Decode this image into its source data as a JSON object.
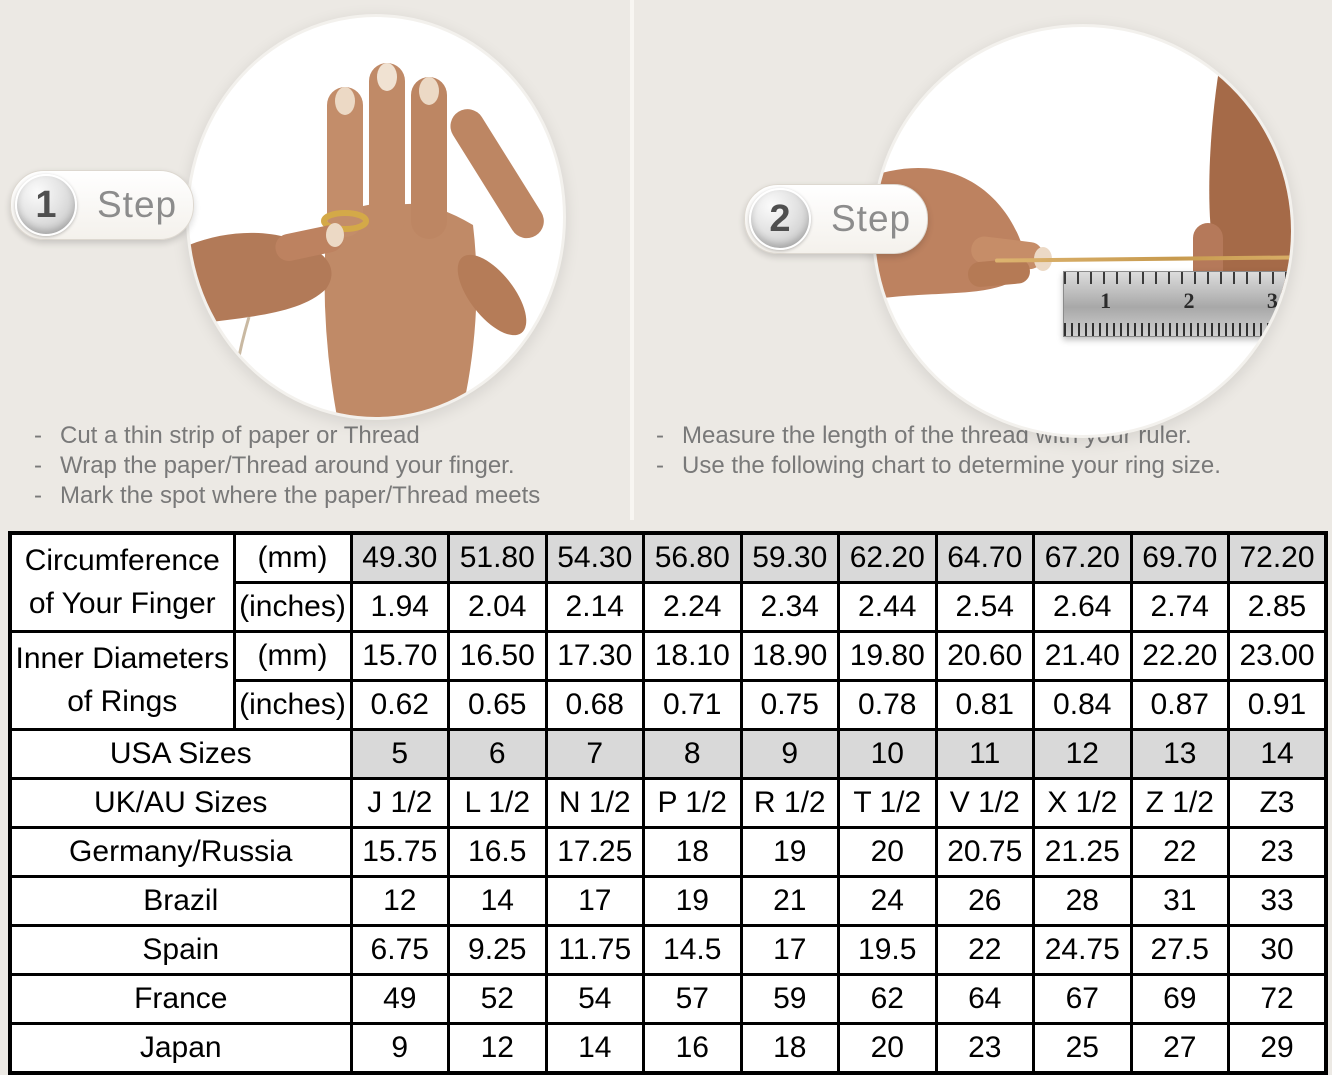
{
  "ui": {
    "dash": "-"
  },
  "colors": {
    "page_background": "#ece9e4",
    "table_shaded_cell": "#d9d9d9",
    "table_border": "#000000",
    "thread_gold": "#c79a4e"
  },
  "steps": [
    {
      "number": "1",
      "label": "Step",
      "bullets": [
        "Cut a thin strip of paper or Thread",
        "Wrap the paper/Thread around your finger.",
        "Mark the spot where the paper/Thread meets"
      ]
    },
    {
      "number": "2",
      "label": "Step",
      "bullets": [
        "Measure the length of the thread with your ruler.",
        "Use the following chart to determine your ring size."
      ]
    }
  ],
  "ruler": {
    "numbers": [
      "1",
      "2",
      "3"
    ]
  },
  "size_chart": {
    "row_groups": [
      {
        "label_lines": [
          "Circumference",
          "of Your Finger"
        ],
        "sub_rows": [
          {
            "unit": "(mm)",
            "shaded": true,
            "values": [
              "49.30",
              "51.80",
              "54.30",
              "56.80",
              "59.30",
              "62.20",
              "64.70",
              "67.20",
              "69.70",
              "72.20"
            ]
          },
          {
            "unit": "(inches)",
            "shaded": false,
            "values": [
              "1.94",
              "2.04",
              "2.14",
              "2.24",
              "2.34",
              "2.44",
              "2.54",
              "2.64",
              "2.74",
              "2.85"
            ]
          }
        ]
      },
      {
        "label_lines": [
          "Inner Diameters",
          "of Rings"
        ],
        "sub_rows": [
          {
            "unit": "(mm)",
            "shaded": false,
            "values": [
              "15.70",
              "16.50",
              "17.30",
              "18.10",
              "18.90",
              "19.80",
              "20.60",
              "21.40",
              "22.20",
              "23.00"
            ]
          },
          {
            "unit": "(inches)",
            "shaded": false,
            "values": [
              "0.62",
              "0.65",
              "0.68",
              "0.71",
              "0.75",
              "0.78",
              "0.81",
              "0.84",
              "0.87",
              "0.91"
            ]
          }
        ]
      }
    ],
    "region_rows": [
      {
        "label": "USA Sizes",
        "shaded": true,
        "values": [
          "5",
          "6",
          "7",
          "8",
          "9",
          "10",
          "11",
          "12",
          "13",
          "14"
        ]
      },
      {
        "label": "UK/AU Sizes",
        "shaded": false,
        "values": [
          "J 1/2",
          "L 1/2",
          "N 1/2",
          "P 1/2",
          "R 1/2",
          "T 1/2",
          "V 1/2",
          "X 1/2",
          "Z 1/2",
          "Z3"
        ]
      },
      {
        "label": "Germany/Russia",
        "shaded": false,
        "values": [
          "15.75",
          "16.5",
          "17.25",
          "18",
          "19",
          "20",
          "20.75",
          "21.25",
          "22",
          "23"
        ]
      },
      {
        "label": "Brazil",
        "shaded": false,
        "values": [
          "12",
          "14",
          "17",
          "19",
          "21",
          "24",
          "26",
          "28",
          "31",
          "33"
        ]
      },
      {
        "label": "Spain",
        "shaded": false,
        "values": [
          "6.75",
          "9.25",
          "11.75",
          "14.5",
          "17",
          "19.5",
          "22",
          "24.75",
          "27.5",
          "30"
        ]
      },
      {
        "label": "France",
        "shaded": false,
        "values": [
          "49",
          "52",
          "54",
          "57",
          "59",
          "62",
          "64",
          "67",
          "69",
          "72"
        ]
      },
      {
        "label": "Japan",
        "shaded": false,
        "values": [
          "9",
          "12",
          "14",
          "16",
          "18",
          "20",
          "23",
          "25",
          "27",
          "29"
        ]
      }
    ]
  }
}
